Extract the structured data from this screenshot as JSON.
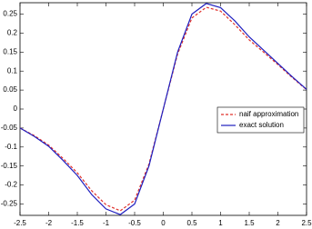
{
  "chart_data": {
    "type": "line",
    "x": [
      -2.5,
      -2.25,
      -2,
      -1.75,
      -1.5,
      -1.25,
      -1,
      -0.75,
      -0.5,
      -0.25,
      0,
      0.25,
      0.5,
      0.75,
      1,
      1.25,
      1.5,
      1.75,
      2,
      2.25,
      2.5
    ],
    "series": [
      {
        "name": "naif approximation",
        "color": "#e0302a",
        "dash": true,
        "values": [
          -0.05,
          -0.07,
          -0.095,
          -0.13,
          -0.168,
          -0.215,
          -0.252,
          -0.268,
          -0.24,
          -0.145,
          0,
          0.145,
          0.24,
          0.268,
          0.258,
          0.222,
          0.182,
          0.15,
          0.117,
          0.083,
          0.051
        ]
      },
      {
        "name": "exact solution",
        "color": "#1f1fbf",
        "dash": false,
        "values": [
          -0.05,
          -0.072,
          -0.098,
          -0.135,
          -0.175,
          -0.225,
          -0.263,
          -0.278,
          -0.25,
          -0.15,
          0,
          0.15,
          0.25,
          0.278,
          0.267,
          0.232,
          0.19,
          0.155,
          0.12,
          0.085,
          0.052
        ]
      }
    ],
    "xlim": [
      -2.5,
      2.5
    ],
    "xticks": [
      -2.5,
      -2,
      -1.5,
      -1,
      -0.5,
      0,
      0.5,
      1,
      1.5,
      2,
      2.5
    ],
    "ylim": [
      -0.28,
      0.28
    ],
    "yticks": [
      -0.25,
      -0.2,
      -0.15,
      -0.1,
      -0.05,
      0,
      0.05,
      0.1,
      0.15,
      0.2,
      0.25
    ],
    "grid": false,
    "legend": "center right"
  }
}
